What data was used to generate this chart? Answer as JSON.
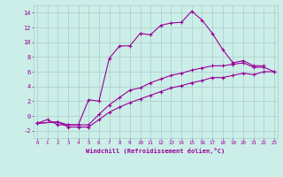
{
  "xlabel": "Windchill (Refroidissement éolien,°C)",
  "bg_color": "#cceee8",
  "line_color": "#990099",
  "grid_color": "#aacccc",
  "x_min": 0,
  "x_max": 23,
  "y_min": -3,
  "y_max": 15,
  "xtick_labels": [
    "0",
    "1",
    "2",
    "3",
    "4",
    "5",
    "6",
    "7",
    "8",
    "9",
    "10",
    "11",
    "12",
    "13",
    "14",
    "15",
    "16",
    "17",
    "18",
    "19",
    "20",
    "21",
    "22",
    "23"
  ],
  "ytick_values": [
    -2,
    0,
    2,
    4,
    6,
    8,
    10,
    12,
    14
  ],
  "curve1_x": [
    0,
    1,
    2,
    3,
    4,
    5,
    6,
    7,
    8,
    9,
    10,
    11,
    12,
    13,
    14,
    15,
    16,
    17,
    18,
    19,
    20,
    21,
    22
  ],
  "curve1_y": [
    -1.0,
    -0.5,
    -1.2,
    -1.2,
    -1.2,
    2.2,
    2.0,
    7.8,
    9.5,
    9.5,
    11.2,
    11.0,
    12.3,
    12.6,
    12.7,
    14.2,
    13.0,
    11.2,
    9.0,
    7.2,
    7.5,
    6.8,
    6.8
  ],
  "curve2_x": [
    0,
    2,
    3,
    4,
    5,
    6,
    7,
    8,
    9,
    10,
    11,
    12,
    13,
    14,
    15,
    16,
    17,
    18,
    19,
    20,
    21,
    22,
    23
  ],
  "curve2_y": [
    -1.0,
    -0.8,
    -1.2,
    -1.2,
    -1.2,
    0.2,
    1.5,
    2.5,
    3.5,
    3.8,
    4.5,
    5.0,
    5.5,
    5.8,
    6.2,
    6.5,
    6.8,
    6.8,
    7.0,
    7.2,
    6.6,
    6.6,
    6.0
  ],
  "curve3_x": [
    0,
    2,
    3,
    4,
    5,
    6,
    7,
    8,
    9,
    10,
    11,
    12,
    13,
    14,
    15,
    16,
    17,
    18,
    19,
    20,
    21,
    22,
    23
  ],
  "curve3_y": [
    -1.0,
    -0.8,
    -1.5,
    -1.5,
    -1.5,
    -0.5,
    0.5,
    1.2,
    1.8,
    2.3,
    2.8,
    3.3,
    3.8,
    4.1,
    4.5,
    4.8,
    5.2,
    5.2,
    5.5,
    5.8,
    5.6,
    6.0,
    6.0
  ]
}
